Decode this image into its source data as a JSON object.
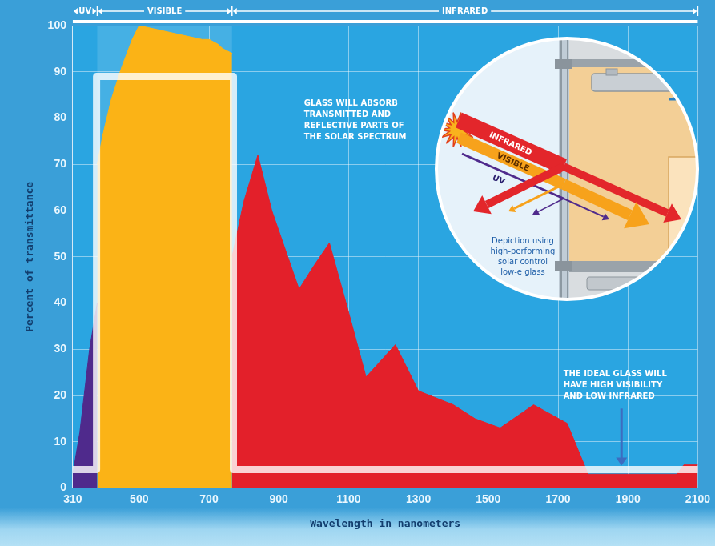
{
  "chart_data": {
    "type": "area",
    "x_label": "Wavelength in nanometers",
    "y_label": "Percent of transmittance",
    "xlim": [
      310,
      2100
    ],
    "xticks": [
      310,
      500,
      700,
      900,
      1100,
      1300,
      1500,
      1700,
      1900,
      2100
    ],
    "ylim": [
      0,
      100
    ],
    "yticks": [
      0,
      10,
      20,
      30,
      40,
      50,
      60,
      70,
      80,
      90,
      100
    ],
    "grid": true,
    "series": [
      {
        "name": "UV",
        "color": "#4f2a8c",
        "type": "area",
        "x": [
          310,
          330,
          358,
          380
        ],
        "values": [
          3,
          12,
          30,
          40
        ]
      },
      {
        "name": "VISIBLE",
        "color": "#fbb316",
        "type": "area",
        "x": [
          380,
          395,
          420,
          450,
          480,
          500,
          560,
          620,
          680,
          700,
          725,
          740,
          766
        ],
        "values": [
          70,
          76,
          84,
          91,
          97,
          100,
          99,
          98,
          97,
          97,
          96,
          95,
          94
        ]
      },
      {
        "name": "INFRARED",
        "color": "#e3202a",
        "type": "area",
        "x": [
          766,
          800,
          840,
          880,
          958,
          1000,
          1045,
          1100,
          1150,
          1234,
          1300,
          1400,
          1462,
          1534,
          1630,
          1726,
          1786,
          1900,
          2040,
          2060,
          2100
        ],
        "values": [
          50,
          62,
          72,
          60,
          43,
          48,
          53,
          38,
          24,
          31,
          21,
          18,
          15,
          13,
          18,
          14,
          3,
          3,
          3,
          5,
          5
        ]
      },
      {
        "color": "#ffffff",
        "type": "line",
        "line_style": "solid",
        "x": [
          310,
          378,
          378,
          770,
          770,
          2100
        ],
        "values": [
          4,
          4,
          89,
          89,
          4,
          4
        ]
      }
    ],
    "annotations": [
      "GLASS WILL ABSORB TRANSMITTED AND REFLECTIVE PARTS OF THE SOLAR SPECTRUM",
      "THE IDEAL GLASS WILL HAVE HIGH VISIBILITY AND LOW INFRARED"
    ],
    "inset": {
      "labels": [
        "INFRARED",
        "VISIBLE",
        "UV"
      ],
      "caption": "Depiction using high-performing solar control low-e glass"
    }
  }
}
